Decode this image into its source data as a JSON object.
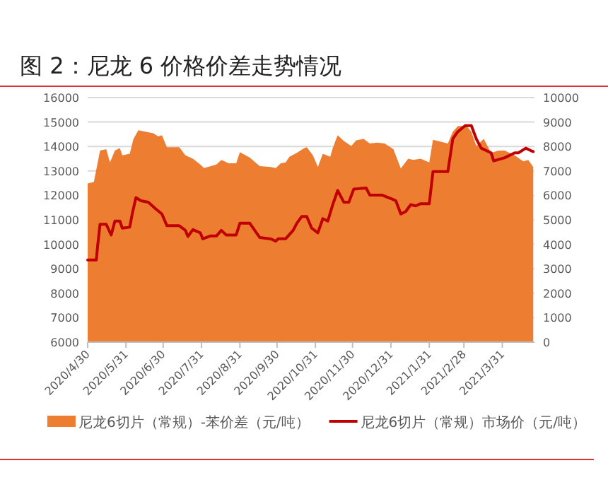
{
  "chart_data": {
    "type": "area",
    "title": "图 2：尼龙 6 价格价差走势情况",
    "xlim": [
      "2020-04-30",
      "2021-04-26"
    ],
    "xticks": [
      {
        "value": "2020-04-30",
        "label": "2020/4/30"
      },
      {
        "value": "2020-05-31",
        "label": "2020/5/31"
      },
      {
        "value": "2020-06-30",
        "label": "2020/6/30"
      },
      {
        "value": "2020-07-31",
        "label": "2020/7/31"
      },
      {
        "value": "2020-08-31",
        "label": "2020/8/31"
      },
      {
        "value": "2020-09-30",
        "label": "2020/9/30"
      },
      {
        "value": "2020-10-31",
        "label": "2020/10/31"
      },
      {
        "value": "2020-11-30",
        "label": "2020/11/30"
      },
      {
        "value": "2020-12-31",
        "label": "2020/12/31"
      },
      {
        "value": "2021-01-31",
        "label": "2021/1/31"
      },
      {
        "value": "2021-02-28",
        "label": "2021/2/28"
      },
      {
        "value": "2021-03-31",
        "label": "2021/3/31"
      }
    ],
    "ylim": [
      6000,
      16000
    ],
    "yticks": [
      6000,
      7000,
      8000,
      9000,
      10000,
      11000,
      12000,
      13000,
      14000,
      15000,
      16000
    ],
    "y2lim": [
      0,
      10000
    ],
    "y2ticks": [
      0,
      1000,
      2000,
      3000,
      4000,
      5000,
      6000,
      7000,
      8000,
      9000,
      10000
    ],
    "grid": "y",
    "legend": "bottom",
    "series": [
      {
        "name": "尼龙6切片（常规）-苯价差（元/吨）",
        "axis": "y2",
        "color": "#ed7d31",
        "x": [
          "2020-04-30",
          "2020-05-05",
          "2020-05-07",
          "2020-05-10",
          "2020-05-15",
          "2020-05-18",
          "2020-05-22",
          "2020-05-26",
          "2020-05-28",
          "2020-06-03",
          "2020-06-06",
          "2020-06-10",
          "2020-06-16",
          "2020-06-22",
          "2020-06-26",
          "2020-06-29",
          "2020-07-03",
          "2020-07-13",
          "2020-07-18",
          "2020-07-24",
          "2020-07-30",
          "2020-08-02",
          "2020-08-12",
          "2020-08-16",
          "2020-08-22",
          "2020-08-28",
          "2020-08-31",
          "2020-09-08",
          "2020-09-16",
          "2020-09-25",
          "2020-09-29",
          "2020-10-03",
          "2020-10-07",
          "2020-10-10",
          "2020-10-16",
          "2020-10-22",
          "2020-10-24",
          "2020-10-29",
          "2020-11-02",
          "2020-11-06",
          "2020-11-12",
          "2020-11-14",
          "2020-11-18",
          "2020-11-23",
          "2020-11-29",
          "2020-12-03",
          "2020-12-09",
          "2020-12-14",
          "2020-12-20",
          "2020-12-26",
          "2021-01-02",
          "2021-01-08",
          "2021-01-14",
          "2021-01-18",
          "2021-01-24",
          "2021-01-31",
          "2021-02-03",
          "2021-02-15",
          "2021-02-19",
          "2021-02-23",
          "2021-03-02",
          "2021-03-06",
          "2021-03-10",
          "2021-03-16",
          "2021-03-22",
          "2021-03-28",
          "2021-04-02",
          "2021-04-10",
          "2021-04-17",
          "2021-04-21",
          "2021-04-25"
        ],
        "values": [
          6490,
          6550,
          7060,
          7830,
          7890,
          7350,
          7830,
          7930,
          7640,
          7700,
          8310,
          8660,
          8600,
          8540,
          8410,
          8460,
          7970,
          7970,
          7640,
          7500,
          7260,
          7120,
          7260,
          7450,
          7310,
          7310,
          7770,
          7540,
          7200,
          7160,
          7120,
          7310,
          7350,
          7580,
          7740,
          7930,
          7970,
          7640,
          7160,
          7700,
          7580,
          7930,
          8460,
          8220,
          8020,
          8250,
          8310,
          8120,
          8160,
          8120,
          7890,
          7100,
          7500,
          7450,
          7500,
          7350,
          8270,
          8120,
          8600,
          8830,
          8850,
          8600,
          8020,
          8310,
          7740,
          7830,
          7830,
          7640,
          7390,
          7450,
          7160
        ]
      },
      {
        "name": "尼龙6切片（常规）市场价（元/吨）",
        "type": "line",
        "axis": "y",
        "color": "#c00000",
        "line_style": "solid",
        "x": [
          "2020-04-30",
          "2020-05-07",
          "2020-05-08",
          "2020-05-10",
          "2020-05-15",
          "2020-05-19",
          "2020-05-22",
          "2020-05-26",
          "2020-05-28",
          "2020-06-03",
          "2020-06-05",
          "2020-06-08",
          "2020-06-12",
          "2020-06-18",
          "2020-06-24",
          "2020-06-29",
          "2020-07-03",
          "2020-07-13",
          "2020-07-18",
          "2020-07-20",
          "2020-07-24",
          "2020-07-30",
          "2020-08-01",
          "2020-08-07",
          "2020-08-12",
          "2020-08-16",
          "2020-08-20",
          "2020-08-28",
          "2020-08-31",
          "2020-09-08",
          "2020-09-16",
          "2020-09-25",
          "2020-09-29",
          "2020-10-01",
          "2020-10-07",
          "2020-10-13",
          "2020-10-16",
          "2020-10-20",
          "2020-10-24",
          "2020-10-28",
          "2020-11-02",
          "2020-11-06",
          "2020-11-10",
          "2020-11-14",
          "2020-11-18",
          "2020-11-23",
          "2020-11-27",
          "2020-12-01",
          "2020-12-11",
          "2020-12-14",
          "2020-12-24",
          "2021-01-01",
          "2021-01-04",
          "2021-01-08",
          "2021-01-12",
          "2021-01-16",
          "2021-01-20",
          "2021-01-24",
          "2021-01-31",
          "2021-02-03",
          "2021-02-15",
          "2021-02-19",
          "2021-02-23",
          "2021-03-01",
          "2021-03-06",
          "2021-03-10",
          "2021-03-14",
          "2021-03-22",
          "2021-03-24",
          "2021-04-02",
          "2021-04-10",
          "2021-04-13",
          "2021-04-19",
          "2021-04-23",
          "2021-04-25"
        ],
        "values": [
          9360,
          9360,
          9900,
          10820,
          10820,
          10380,
          10950,
          10950,
          10660,
          10700,
          11240,
          11910,
          11780,
          11720,
          11450,
          11240,
          10760,
          10760,
          10570,
          10320,
          10600,
          10470,
          10220,
          10340,
          10340,
          10570,
          10380,
          10380,
          10860,
          10860,
          10280,
          10220,
          10130,
          10230,
          10230,
          10570,
          10860,
          11140,
          11140,
          10660,
          10470,
          11050,
          10950,
          11620,
          12200,
          11720,
          11720,
          12260,
          12300,
          12010,
          12010,
          11850,
          11780,
          11240,
          11340,
          11620,
          11570,
          11660,
          11660,
          12970,
          12970,
          14310,
          14600,
          14850,
          14850,
          14310,
          13930,
          13740,
          13410,
          13540,
          13740,
          13740,
          13930,
          13830,
          13790
        ]
      }
    ]
  }
}
